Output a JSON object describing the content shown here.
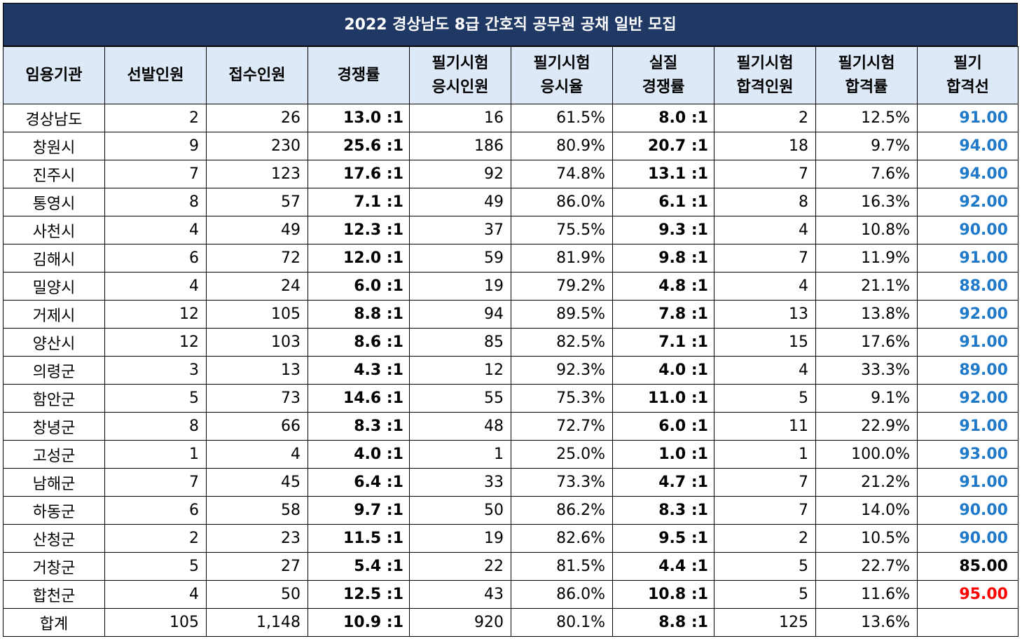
{
  "title": "2022 경상남도 8급 간호직 공무원 공채 일반 모집",
  "colors": {
    "title_bg": "#1f3864",
    "header_bg": "#dde9f7",
    "cutoff_blue": "#1f78c8",
    "cutoff_black": "#000000",
    "cutoff_red": "#ff0000"
  },
  "headers": [
    [
      "임용기관"
    ],
    [
      "선발인원"
    ],
    [
      "접수인원"
    ],
    [
      "경쟁률"
    ],
    [
      "필기시험",
      "응시인원"
    ],
    [
      "필기시험",
      "응시율"
    ],
    [
      "실질",
      "경쟁률"
    ],
    [
      "필기시험",
      "합격인원"
    ],
    [
      "필기시험",
      "합격률"
    ],
    [
      "필기",
      "합격선"
    ]
  ],
  "rows": [
    {
      "org": "경상남도",
      "sel": "2",
      "app": "26",
      "ratio": "13.0 :1",
      "taken": "16",
      "rate": "61.5%",
      "real": "8.0 :1",
      "pass": "2",
      "passrate": "12.5%",
      "cut": "91.00",
      "cut_color": "#1f78c8"
    },
    {
      "org": "창원시",
      "sel": "9",
      "app": "230",
      "ratio": "25.6 :1",
      "taken": "186",
      "rate": "80.9%",
      "real": "20.7 :1",
      "pass": "18",
      "passrate": "9.7%",
      "cut": "94.00",
      "cut_color": "#1f78c8"
    },
    {
      "org": "진주시",
      "sel": "7",
      "app": "123",
      "ratio": "17.6 :1",
      "taken": "92",
      "rate": "74.8%",
      "real": "13.1 :1",
      "pass": "7",
      "passrate": "7.6%",
      "cut": "94.00",
      "cut_color": "#1f78c8"
    },
    {
      "org": "통영시",
      "sel": "8",
      "app": "57",
      "ratio": "7.1 :1",
      "taken": "49",
      "rate": "86.0%",
      "real": "6.1 :1",
      "pass": "8",
      "passrate": "16.3%",
      "cut": "92.00",
      "cut_color": "#1f78c8"
    },
    {
      "org": "사천시",
      "sel": "4",
      "app": "49",
      "ratio": "12.3 :1",
      "taken": "37",
      "rate": "75.5%",
      "real": "9.3 :1",
      "pass": "4",
      "passrate": "10.8%",
      "cut": "90.00",
      "cut_color": "#1f78c8"
    },
    {
      "org": "김해시",
      "sel": "6",
      "app": "72",
      "ratio": "12.0 :1",
      "taken": "59",
      "rate": "81.9%",
      "real": "9.8 :1",
      "pass": "7",
      "passrate": "11.9%",
      "cut": "91.00",
      "cut_color": "#1f78c8"
    },
    {
      "org": "밀양시",
      "sel": "4",
      "app": "24",
      "ratio": "6.0 :1",
      "taken": "19",
      "rate": "79.2%",
      "real": "4.8 :1",
      "pass": "4",
      "passrate": "21.1%",
      "cut": "88.00",
      "cut_color": "#1f78c8"
    },
    {
      "org": "거제시",
      "sel": "12",
      "app": "105",
      "ratio": "8.8 :1",
      "taken": "94",
      "rate": "89.5%",
      "real": "7.8 :1",
      "pass": "13",
      "passrate": "13.8%",
      "cut": "92.00",
      "cut_color": "#1f78c8"
    },
    {
      "org": "양산시",
      "sel": "12",
      "app": "103",
      "ratio": "8.6 :1",
      "taken": "85",
      "rate": "82.5%",
      "real": "7.1 :1",
      "pass": "15",
      "passrate": "17.6%",
      "cut": "91.00",
      "cut_color": "#1f78c8"
    },
    {
      "org": "의령군",
      "sel": "3",
      "app": "13",
      "ratio": "4.3 :1",
      "taken": "12",
      "rate": "92.3%",
      "real": "4.0 :1",
      "pass": "4",
      "passrate": "33.3%",
      "cut": "89.00",
      "cut_color": "#1f78c8"
    },
    {
      "org": "함안군",
      "sel": "5",
      "app": "73",
      "ratio": "14.6 :1",
      "taken": "55",
      "rate": "75.3%",
      "real": "11.0 :1",
      "pass": "5",
      "passrate": "9.1%",
      "cut": "92.00",
      "cut_color": "#1f78c8"
    },
    {
      "org": "창녕군",
      "sel": "8",
      "app": "66",
      "ratio": "8.3 :1",
      "taken": "48",
      "rate": "72.7%",
      "real": "6.0 :1",
      "pass": "11",
      "passrate": "22.9%",
      "cut": "91.00",
      "cut_color": "#1f78c8"
    },
    {
      "org": "고성군",
      "sel": "1",
      "app": "4",
      "ratio": "4.0 :1",
      "taken": "1",
      "rate": "25.0%",
      "real": "1.0 :1",
      "pass": "1",
      "passrate": "100.0%",
      "cut": "93.00",
      "cut_color": "#1f78c8"
    },
    {
      "org": "남해군",
      "sel": "7",
      "app": "45",
      "ratio": "6.4 :1",
      "taken": "33",
      "rate": "73.3%",
      "real": "4.7 :1",
      "pass": "7",
      "passrate": "21.2%",
      "cut": "91.00",
      "cut_color": "#1f78c8"
    },
    {
      "org": "하동군",
      "sel": "6",
      "app": "58",
      "ratio": "9.7 :1",
      "taken": "50",
      "rate": "86.2%",
      "real": "8.3 :1",
      "pass": "7",
      "passrate": "14.0%",
      "cut": "90.00",
      "cut_color": "#1f78c8"
    },
    {
      "org": "산청군",
      "sel": "2",
      "app": "23",
      "ratio": "11.5 :1",
      "taken": "19",
      "rate": "82.6%",
      "real": "9.5 :1",
      "pass": "2",
      "passrate": "10.5%",
      "cut": "90.00",
      "cut_color": "#1f78c8"
    },
    {
      "org": "거창군",
      "sel": "5",
      "app": "27",
      "ratio": "5.4 :1",
      "taken": "22",
      "rate": "81.5%",
      "real": "4.4 :1",
      "pass": "5",
      "passrate": "22.7%",
      "cut": "85.00",
      "cut_color": "#000000"
    },
    {
      "org": "합천군",
      "sel": "4",
      "app": "50",
      "ratio": "12.5 :1",
      "taken": "43",
      "rate": "86.0%",
      "real": "10.8 :1",
      "pass": "5",
      "passrate": "11.6%",
      "cut": "95.00",
      "cut_color": "#ff0000"
    },
    {
      "org": "합계",
      "sel": "105",
      "app": "1,148",
      "ratio": "10.9 :1",
      "taken": "920",
      "rate": "80.1%",
      "real": "8.8 :1",
      "pass": "125",
      "passrate": "13.6%",
      "cut": "",
      "cut_color": "#000000"
    }
  ]
}
